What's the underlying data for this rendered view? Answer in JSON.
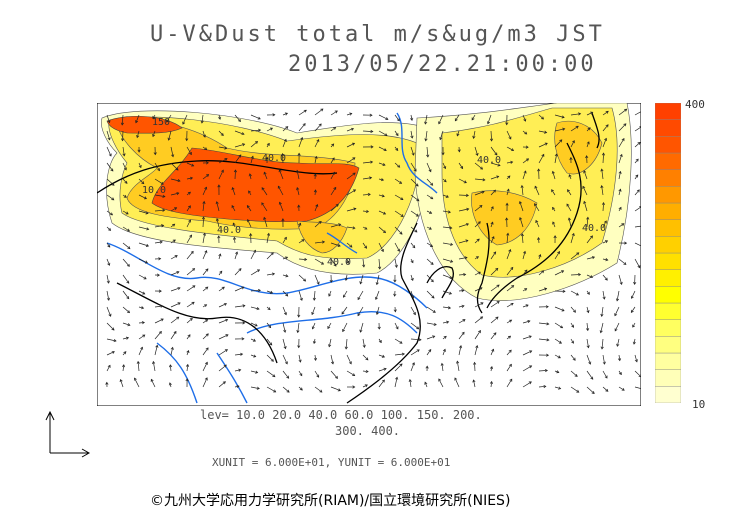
{
  "title": "U-V&Dust total m/s&ug/m3 JST",
  "datetime": "2013/05/22.21:00:00",
  "colorbar": {
    "max_label": "400",
    "min_label": "10",
    "colors": [
      "#ffffd0",
      "#ffffb8",
      "#ffffa0",
      "#ffff80",
      "#ffff60",
      "#ffff30",
      "#ffff00",
      "#fff000",
      "#ffe000",
      "#ffd000",
      "#ffc000",
      "#ffae00",
      "#ff9800",
      "#ff8000",
      "#ff6a00",
      "#ff5500",
      "#ff4a00",
      "#ff4000"
    ]
  },
  "contour_labels": [
    "150",
    "40.0",
    "10.0",
    "40.0",
    "40.0",
    "40.0",
    "40.0"
  ],
  "levels_line1": "lev= 10.0 20.0 40.0 60.0 100. 150. 200.",
  "levels_line2": "300. 400.",
  "units_line": "XUNIT = 6.000E+01, YUNIT = 6.000E+01",
  "copyright": "©九州大学応用力学研究所(RIAM)/国立環境研究所(NIES)",
  "map_colors": {
    "low": "#ffffc0",
    "mid": "#ffee55",
    "high": "#ffcc22",
    "peak": "#ff5500",
    "coast": "#000000",
    "river": "#1e6ee8",
    "arrow": "#222222"
  }
}
